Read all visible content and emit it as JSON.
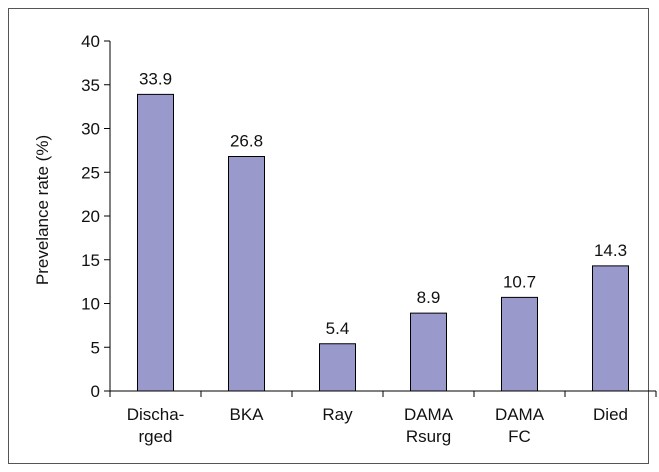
{
  "chart_data": {
    "type": "bar",
    "categories": [
      [
        "Discha-",
        "rged"
      ],
      [
        "BKA"
      ],
      [
        "Ray"
      ],
      [
        "DAMA",
        "Rsurg"
      ],
      [
        "DAMA",
        "FC"
      ],
      [
        "Died"
      ]
    ],
    "values": [
      33.9,
      26.8,
      5.4,
      8.9,
      10.7,
      14.3
    ],
    "data_labels": [
      "33.9",
      "26.8",
      "5.4",
      "8.9",
      "10.7",
      "14.3"
    ],
    "ylabel": "Prevelance rate (%)",
    "xlabel": "",
    "title": "",
    "ylim": [
      0,
      40
    ],
    "yticks": [
      0,
      5,
      10,
      15,
      20,
      25,
      30,
      35,
      40
    ],
    "grid": false,
    "legend": "none",
    "bar_color": "#9999cc",
    "bar_edge_color": "#000000"
  }
}
